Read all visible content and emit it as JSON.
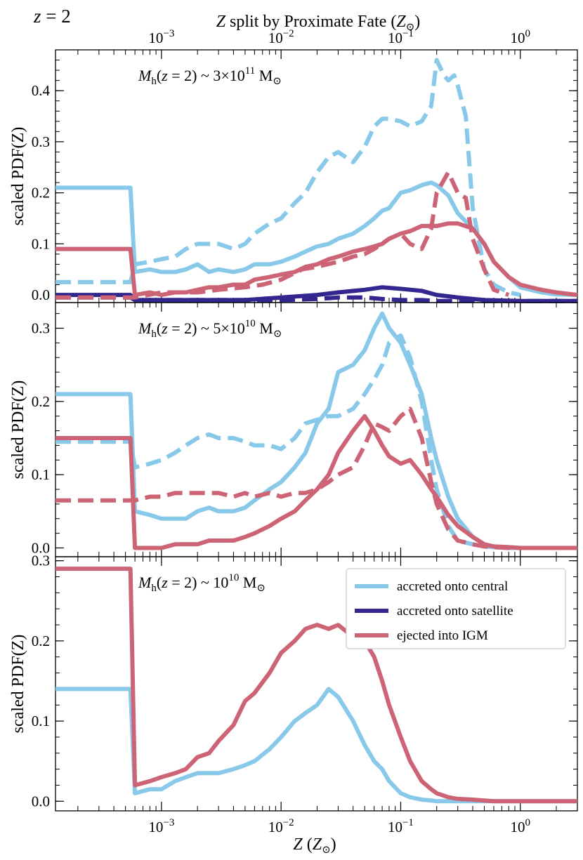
{
  "figure": {
    "corner_label": "z = 2",
    "top_axis_title": "Z split by Proximate Fate (Z⊙)",
    "x_label": "Z (Z⊙)",
    "y_label": "scaled PDF(Z)"
  },
  "colors": {
    "central": "#88c9ea",
    "satellite": "#33268f",
    "igm": "#cd6475"
  },
  "legend": {
    "placement": "top-right of bottom panel",
    "entries": [
      {
        "label": "accreted onto central",
        "color": "#88c9ea"
      },
      {
        "label": "accreted onto satellite",
        "color": "#33268f"
      },
      {
        "label": "ejected into IGM",
        "color": "#cd6475"
      }
    ]
  },
  "chart_data": [
    {
      "type": "line",
      "panel_label": "Mh(z=2) ~ 3×10^11 M⊙",
      "x_scale": "log",
      "xlim": [
        0.00013,
        3.0
      ],
      "ylim": [
        -0.015,
        0.48
      ],
      "yticks": [
        0.0,
        0.1,
        0.2,
        0.3,
        0.4
      ],
      "ytick_labels": [
        "0.0",
        "0.1",
        "0.2",
        "0.3",
        "0.4"
      ],
      "xticks": [
        0.001,
        0.01,
        0.1,
        1.0
      ],
      "xtick_labels": [
        "10^-3",
        "10^-2",
        "10^-1",
        "10^0"
      ],
      "series": [
        {
          "fate": "central",
          "style": "solid",
          "lowZ_value": 0.21,
          "x": [
            0.00055,
            0.0006,
            0.0008,
            0.001,
            0.0013,
            0.0016,
            0.002,
            0.0025,
            0.003,
            0.004,
            0.005,
            0.006,
            0.008,
            0.01,
            0.013,
            0.016,
            0.02,
            0.025,
            0.03,
            0.04,
            0.05,
            0.06,
            0.07,
            0.08,
            0.1,
            0.12,
            0.15,
            0.18,
            0.2,
            0.25,
            0.3,
            0.4,
            0.5,
            0.6,
            0.8,
            1.0,
            1.5,
            2.0,
            3.0
          ],
          "y": [
            0.21,
            0.045,
            0.05,
            0.045,
            0.045,
            0.05,
            0.06,
            0.045,
            0.05,
            0.045,
            0.05,
            0.06,
            0.06,
            0.065,
            0.075,
            0.085,
            0.095,
            0.1,
            0.11,
            0.12,
            0.135,
            0.15,
            0.165,
            0.17,
            0.2,
            0.205,
            0.215,
            0.22,
            0.215,
            0.195,
            0.16,
            0.13,
            0.1,
            0.065,
            0.035,
            0.015,
            0.005,
            0.001,
            0.0
          ]
        },
        {
          "fate": "central",
          "style": "dashed",
          "lowZ_value": 0.025,
          "x": [
            0.00055,
            0.0006,
            0.0008,
            0.001,
            0.0013,
            0.0016,
            0.002,
            0.0025,
            0.003,
            0.004,
            0.005,
            0.006,
            0.008,
            0.01,
            0.013,
            0.016,
            0.02,
            0.025,
            0.03,
            0.04,
            0.05,
            0.06,
            0.07,
            0.08,
            0.1,
            0.12,
            0.15,
            0.18,
            0.2,
            0.23,
            0.25,
            0.28,
            0.3,
            0.35,
            0.4,
            0.5,
            0.6,
            0.8,
            1.0
          ],
          "y": [
            0.025,
            0.06,
            0.065,
            0.07,
            0.075,
            0.09,
            0.1,
            0.1,
            0.1,
            0.09,
            0.1,
            0.12,
            0.14,
            0.15,
            0.18,
            0.2,
            0.24,
            0.27,
            0.28,
            0.26,
            0.29,
            0.33,
            0.345,
            0.345,
            0.34,
            0.33,
            0.34,
            0.37,
            0.46,
            0.43,
            0.42,
            0.43,
            0.41,
            0.35,
            0.17,
            0.05,
            0.02,
            0.005,
            0.0
          ]
        },
        {
          "fate": "satellite",
          "style": "solid",
          "lowZ_value": 0.0,
          "x": [
            0.00055,
            0.0006,
            0.001,
            0.002,
            0.005,
            0.01,
            0.02,
            0.03,
            0.05,
            0.07,
            0.1,
            0.15,
            0.2,
            0.3,
            0.5,
            1.0,
            3.0
          ],
          "y": [
            0.0,
            -0.01,
            -0.01,
            -0.01,
            -0.01,
            -0.005,
            0.0,
            0.005,
            0.01,
            0.015,
            0.012,
            0.008,
            0.0,
            -0.005,
            -0.01,
            -0.012,
            -0.012
          ]
        },
        {
          "fate": "satellite",
          "style": "dashed",
          "lowZ_value": -0.005,
          "x": [
            0.00055,
            0.0006,
            0.001,
            0.002,
            0.005,
            0.01,
            0.02,
            0.03,
            0.05,
            0.07,
            0.1,
            0.15,
            0.2,
            0.3,
            0.5,
            1.0,
            3.0
          ],
          "y": [
            -0.005,
            -0.01,
            -0.01,
            -0.01,
            -0.01,
            -0.01,
            -0.008,
            -0.005,
            -0.005,
            -0.008,
            -0.01,
            -0.01,
            -0.012,
            -0.012,
            -0.012,
            -0.012,
            -0.012
          ]
        },
        {
          "fate": "igm",
          "style": "solid",
          "lowZ_value": 0.09,
          "x": [
            0.00055,
            0.0006,
            0.0008,
            0.001,
            0.0013,
            0.0016,
            0.002,
            0.0025,
            0.003,
            0.004,
            0.005,
            0.006,
            0.008,
            0.01,
            0.013,
            0.016,
            0.02,
            0.025,
            0.03,
            0.04,
            0.05,
            0.06,
            0.07,
            0.08,
            0.1,
            0.12,
            0.15,
            0.18,
            0.2,
            0.25,
            0.3,
            0.4,
            0.5,
            0.6,
            0.8,
            1.0,
            1.5,
            2.0,
            3.0
          ],
          "y": [
            0.09,
            0.0,
            0.005,
            0.0,
            0.005,
            0.005,
            0.01,
            0.015,
            0.015,
            0.02,
            0.02,
            0.03,
            0.035,
            0.04,
            0.045,
            0.055,
            0.06,
            0.07,
            0.075,
            0.085,
            0.09,
            0.095,
            0.1,
            0.11,
            0.12,
            0.125,
            0.135,
            0.135,
            0.135,
            0.14,
            0.14,
            0.13,
            0.1,
            0.065,
            0.035,
            0.02,
            0.01,
            0.005,
            0.0
          ]
        },
        {
          "fate": "igm",
          "style": "dashed",
          "lowZ_value": -0.005,
          "x": [
            0.00055,
            0.0006,
            0.001,
            0.002,
            0.003,
            0.005,
            0.007,
            0.01,
            0.015,
            0.02,
            0.03,
            0.04,
            0.05,
            0.06,
            0.08,
            0.1,
            0.12,
            0.15,
            0.18,
            0.2,
            0.25,
            0.3,
            0.35,
            0.4,
            0.5,
            0.6,
            0.8
          ],
          "y": [
            -0.005,
            -0.005,
            0.005,
            0.005,
            0.01,
            0.015,
            0.02,
            0.03,
            0.05,
            0.055,
            0.065,
            0.075,
            0.08,
            0.09,
            0.11,
            0.12,
            0.1,
            0.09,
            0.13,
            0.2,
            0.24,
            0.2,
            0.19,
            0.11,
            0.05,
            0.01,
            0.0
          ]
        }
      ]
    },
    {
      "type": "line",
      "panel_label": "Mh(z=2) ~ 5×10^10 M⊙",
      "x_scale": "log",
      "xlim": [
        0.00013,
        3.0
      ],
      "ylim": [
        -0.012,
        0.335
      ],
      "yticks": [
        0.0,
        0.1,
        0.2,
        0.3
      ],
      "ytick_labels": [
        "0.0",
        "0.1",
        "0.2",
        "0.3"
      ],
      "xticks": [
        0.001,
        0.01,
        0.1,
        1.0
      ],
      "xtick_labels": [
        "10^-3",
        "10^-2",
        "10^-1",
        "10^0"
      ],
      "series": [
        {
          "fate": "central",
          "style": "solid",
          "lowZ_value": 0.21,
          "x": [
            0.00055,
            0.0006,
            0.0008,
            0.001,
            0.0013,
            0.0016,
            0.002,
            0.0025,
            0.003,
            0.004,
            0.005,
            0.006,
            0.008,
            0.01,
            0.013,
            0.016,
            0.02,
            0.025,
            0.03,
            0.04,
            0.05,
            0.06,
            0.07,
            0.08,
            0.1,
            0.12,
            0.15,
            0.18,
            0.2,
            0.25,
            0.3,
            0.4,
            0.5,
            0.6,
            0.8,
            1.0,
            1.5,
            2.0,
            3.0
          ],
          "y": [
            0.21,
            0.05,
            0.045,
            0.04,
            0.04,
            0.04,
            0.05,
            0.055,
            0.05,
            0.05,
            0.055,
            0.065,
            0.08,
            0.09,
            0.11,
            0.13,
            0.17,
            0.19,
            0.24,
            0.25,
            0.27,
            0.3,
            0.32,
            0.3,
            0.28,
            0.25,
            0.21,
            0.15,
            0.12,
            0.07,
            0.04,
            0.015,
            0.005,
            0.002,
            0.001,
            0.0,
            0.0,
            0.0,
            0.0
          ]
        },
        {
          "fate": "central",
          "style": "dashed",
          "lowZ_value": 0.145,
          "x": [
            0.00055,
            0.0006,
            0.0008,
            0.001,
            0.0013,
            0.0016,
            0.002,
            0.0025,
            0.003,
            0.004,
            0.005,
            0.006,
            0.008,
            0.01,
            0.013,
            0.016,
            0.02,
            0.025,
            0.03,
            0.04,
            0.05,
            0.06,
            0.07,
            0.08,
            0.1,
            0.12,
            0.15,
            0.18,
            0.2,
            0.25,
            0.3,
            0.4,
            0.5,
            0.6,
            0.8,
            1.0
          ],
          "y": [
            0.145,
            0.11,
            0.115,
            0.12,
            0.13,
            0.14,
            0.15,
            0.155,
            0.15,
            0.15,
            0.145,
            0.14,
            0.14,
            0.135,
            0.15,
            0.17,
            0.175,
            0.18,
            0.18,
            0.19,
            0.21,
            0.23,
            0.25,
            0.28,
            0.29,
            0.26,
            0.2,
            0.12,
            0.08,
            0.03,
            0.01,
            0.005,
            0.002,
            0.001,
            0.0,
            0.0
          ]
        },
        {
          "fate": "igm",
          "style": "solid",
          "lowZ_value": 0.15,
          "x": [
            0.00055,
            0.0006,
            0.0008,
            0.001,
            0.0013,
            0.0016,
            0.002,
            0.0025,
            0.003,
            0.004,
            0.005,
            0.006,
            0.008,
            0.01,
            0.013,
            0.016,
            0.02,
            0.025,
            0.03,
            0.04,
            0.05,
            0.06,
            0.07,
            0.08,
            0.1,
            0.12,
            0.15,
            0.18,
            0.2,
            0.25,
            0.3,
            0.4,
            0.5,
            0.6,
            0.8,
            1.0,
            1.5,
            2.0,
            3.0
          ],
          "y": [
            0.15,
            0.0,
            0.0,
            0.0,
            0.005,
            0.005,
            0.005,
            0.01,
            0.01,
            0.01,
            0.015,
            0.02,
            0.03,
            0.04,
            0.05,
            0.065,
            0.08,
            0.1,
            0.13,
            0.16,
            0.18,
            0.16,
            0.14,
            0.125,
            0.115,
            0.12,
            0.1,
            0.08,
            0.07,
            0.045,
            0.03,
            0.015,
            0.005,
            0.002,
            0.001,
            0.0,
            0.0,
            0.0,
            0.0
          ]
        },
        {
          "fate": "igm",
          "style": "dashed",
          "lowZ_value": 0.065,
          "x": [
            0.00055,
            0.0006,
            0.0008,
            0.001,
            0.0013,
            0.0016,
            0.002,
            0.0025,
            0.003,
            0.004,
            0.005,
            0.006,
            0.008,
            0.01,
            0.013,
            0.016,
            0.02,
            0.025,
            0.03,
            0.04,
            0.05,
            0.06,
            0.07,
            0.08,
            0.1,
            0.12,
            0.15,
            0.18,
            0.2,
            0.25,
            0.3,
            0.4,
            0.5,
            0.6,
            0.8,
            1.0
          ],
          "y": [
            0.065,
            0.065,
            0.07,
            0.07,
            0.075,
            0.075,
            0.075,
            0.075,
            0.075,
            0.07,
            0.075,
            0.07,
            0.075,
            0.07,
            0.075,
            0.075,
            0.08,
            0.09,
            0.1,
            0.11,
            0.14,
            0.17,
            0.165,
            0.16,
            0.18,
            0.19,
            0.15,
            0.09,
            0.06,
            0.025,
            0.01,
            0.005,
            0.002,
            0.001,
            0.0,
            0.0
          ]
        }
      ]
    },
    {
      "type": "line",
      "panel_label": "Mh(z=2) ~ 10^10 M⊙",
      "x_scale": "log",
      "xlim": [
        0.00013,
        3.0
      ],
      "ylim": [
        -0.012,
        0.305
      ],
      "yticks": [
        0.0,
        0.1,
        0.2,
        0.3
      ],
      "ytick_labels": [
        "0.0",
        "0.1",
        "0.2",
        "0.3"
      ],
      "xticks": [
        0.001,
        0.01,
        0.1,
        1.0
      ],
      "xtick_labels": [
        "10^-3",
        "10^-2",
        "10^-1",
        "10^0"
      ],
      "series": [
        {
          "fate": "central",
          "style": "solid",
          "lowZ_value": 0.14,
          "x": [
            0.00055,
            0.0006,
            0.0008,
            0.001,
            0.0013,
            0.0016,
            0.002,
            0.0025,
            0.003,
            0.004,
            0.005,
            0.006,
            0.008,
            0.01,
            0.013,
            0.016,
            0.02,
            0.025,
            0.03,
            0.04,
            0.05,
            0.06,
            0.07,
            0.08,
            0.1,
            0.12,
            0.15,
            0.18,
            0.2,
            0.25,
            0.3,
            0.4,
            0.5,
            0.6,
            0.8,
            1.0,
            1.5,
            2.0,
            3.0
          ],
          "y": [
            0.14,
            0.01,
            0.015,
            0.015,
            0.025,
            0.03,
            0.035,
            0.035,
            0.035,
            0.04,
            0.045,
            0.05,
            0.065,
            0.08,
            0.1,
            0.11,
            0.12,
            0.14,
            0.13,
            0.1,
            0.07,
            0.05,
            0.04,
            0.025,
            0.01,
            0.005,
            0.002,
            0.001,
            0.0,
            0.0,
            0.0,
            0.0,
            0.0,
            0.0,
            0.0,
            0.0,
            0.0,
            0.0,
            0.0
          ]
        },
        {
          "fate": "igm",
          "style": "solid",
          "lowZ_value": 0.29,
          "x": [
            0.00055,
            0.0006,
            0.0008,
            0.001,
            0.0013,
            0.0016,
            0.002,
            0.0025,
            0.003,
            0.004,
            0.005,
            0.006,
            0.008,
            0.01,
            0.013,
            0.016,
            0.02,
            0.025,
            0.03,
            0.04,
            0.05,
            0.06,
            0.07,
            0.08,
            0.1,
            0.12,
            0.15,
            0.18,
            0.2,
            0.25,
            0.3,
            0.4,
            0.5,
            0.6,
            0.8,
            1.0,
            1.5,
            2.0,
            3.0
          ],
          "y": [
            0.29,
            0.02,
            0.025,
            0.03,
            0.035,
            0.04,
            0.055,
            0.06,
            0.075,
            0.095,
            0.125,
            0.135,
            0.16,
            0.185,
            0.2,
            0.215,
            0.22,
            0.215,
            0.22,
            0.205,
            0.2,
            0.18,
            0.15,
            0.12,
            0.08,
            0.05,
            0.025,
            0.015,
            0.01,
            0.005,
            0.003,
            0.002,
            0.001,
            0.0,
            0.0,
            0.0,
            0.0,
            0.0,
            0.0
          ]
        }
      ]
    }
  ]
}
